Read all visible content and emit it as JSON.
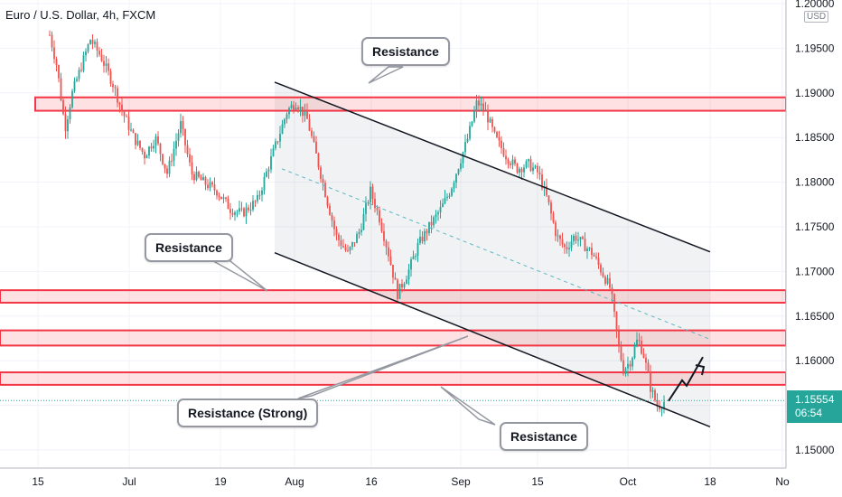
{
  "header": {
    "title": "Euro / U.S. Dollar, 4h, FXCM",
    "currency": "USD"
  },
  "price_tag": {
    "price": "1.15554",
    "countdown": "06:54"
  },
  "annotations": [
    {
      "text": "Resistance"
    },
    {
      "text": "Resistance"
    },
    {
      "text": "Resistance (Strong)"
    },
    {
      "text": "Resistance"
    }
  ],
  "chart_data": {
    "type": "candlestick",
    "symbol": "Euro / U.S. Dollar, 4h, FXCM",
    "y_unit": "USD",
    "y_ticks": [
      "1.15000",
      "1.15500",
      "1.16000",
      "1.16500",
      "1.17000",
      "1.17500",
      "1.18000",
      "1.18500",
      "1.19000",
      "1.19500",
      "1.20000"
    ],
    "x_ticks": [
      "15",
      "Jul",
      "19",
      "Aug",
      "16",
      "Sep",
      "15",
      "Oct",
      "18",
      "No"
    ],
    "ylim": [
      1.1496,
      1.2003
    ],
    "last_price": 1.15554,
    "resistance_zones": [
      {
        "low": 1.188,
        "high": 1.1895
      },
      {
        "low": 1.1665,
        "high": 1.1679
      },
      {
        "low": 1.1617,
        "high": 1.1634
      },
      {
        "low": 1.1573,
        "high": 1.1587
      }
    ],
    "channel": {
      "upper": [
        [
          "Aug",
          1.1912
        ],
        [
          "18",
          1.1722
        ]
      ],
      "lower": [
        [
          "Aug",
          1.1721
        ],
        [
          "18",
          1.1526
        ]
      ],
      "mid": [
        [
          "Aug",
          1.1815
        ],
        [
          "18",
          1.1624
        ]
      ]
    },
    "projection_arrow": [
      1.1555,
      1.157,
      1.1592
    ]
  }
}
